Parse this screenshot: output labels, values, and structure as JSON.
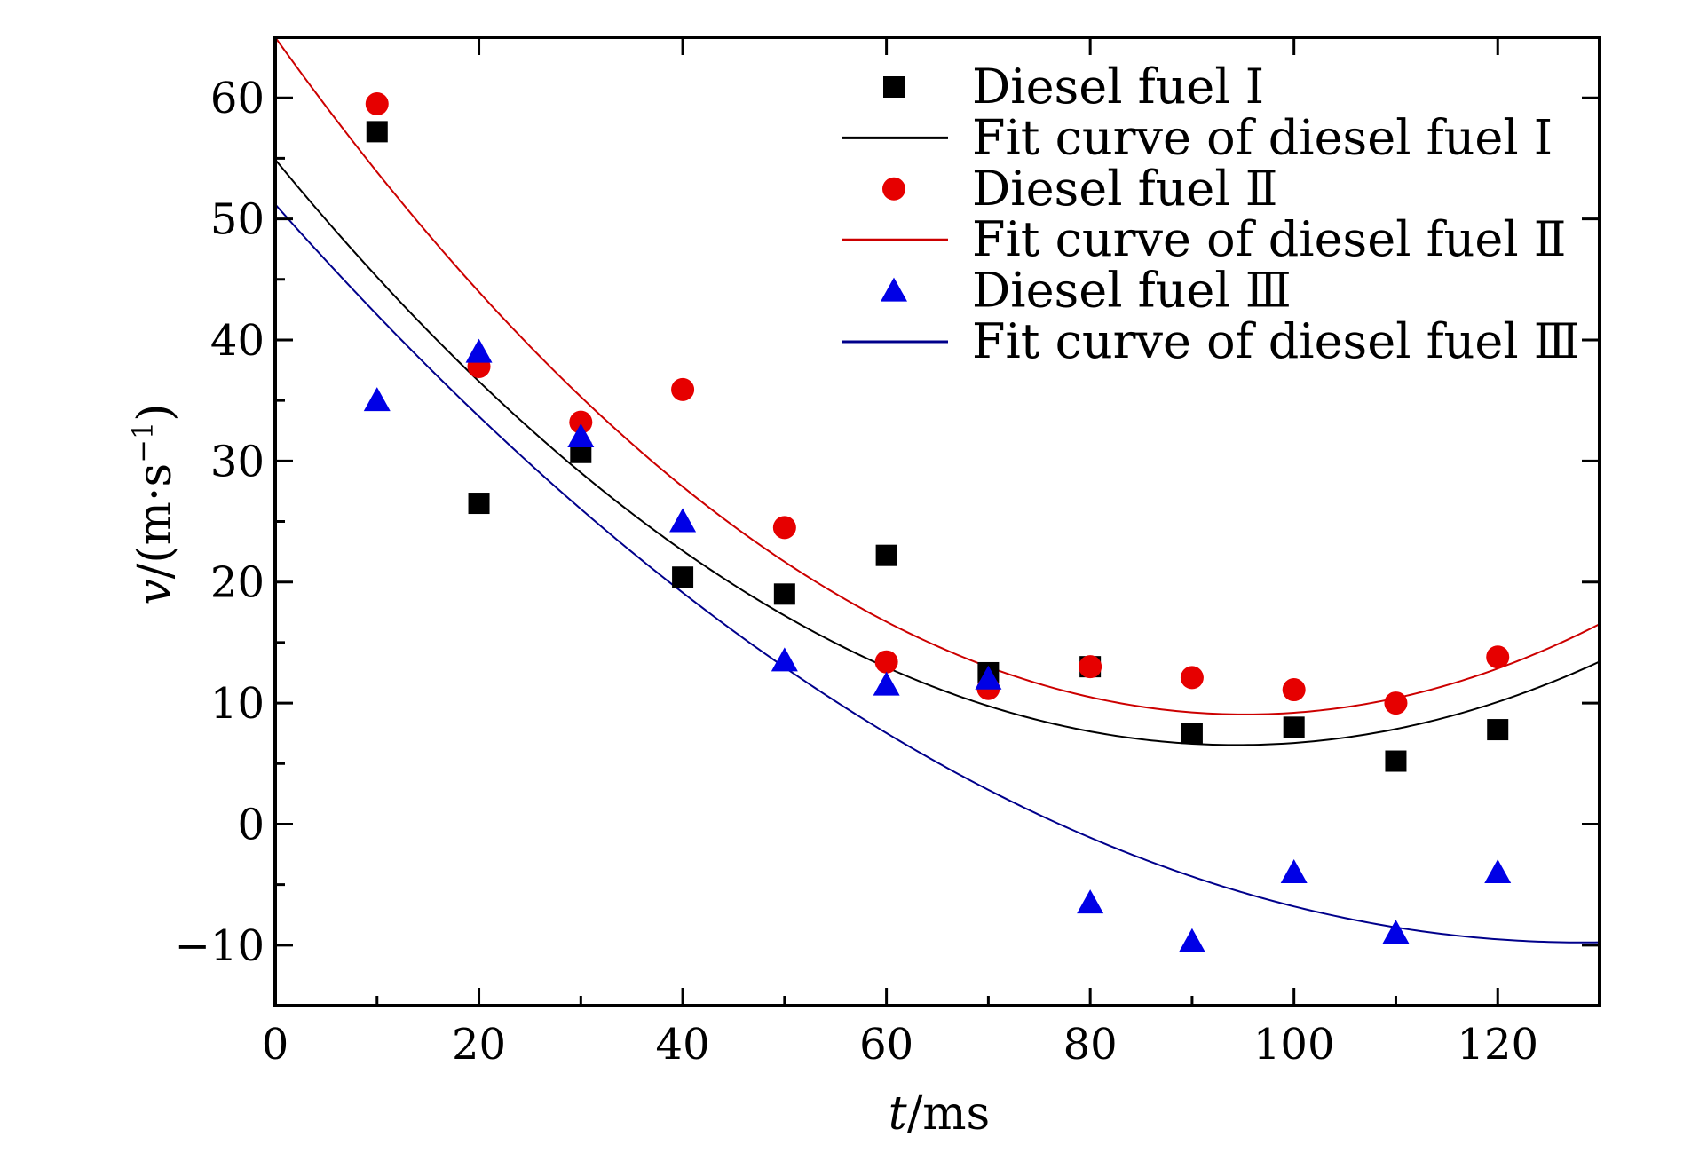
{
  "chart_data": {
    "type": "scatter",
    "xlabel": "t/ms",
    "xlabel_var": "t",
    "xlabel_unit": "/ms",
    "ylabel_var": "v",
    "ylabel_unit": "/(m·s",
    "ylabel_exp": "−1",
    "ylabel_close": ")",
    "xlim": [
      0,
      130
    ],
    "ylim": [
      -15,
      65
    ],
    "xticks": [
      0,
      20,
      40,
      60,
      80,
      100,
      120
    ],
    "yticks": [
      -10,
      0,
      10,
      20,
      30,
      40,
      50,
      60
    ],
    "ytick_labels": [
      "−10",
      "0",
      "10",
      "20",
      "30",
      "40",
      "50",
      "60"
    ],
    "grid": false,
    "legend_position": "top-right",
    "x": [
      10,
      20,
      30,
      40,
      50,
      60,
      70,
      80,
      90,
      100,
      110,
      120
    ],
    "series": [
      {
        "name": "Diesel fuel Ⅰ",
        "marker": "square",
        "color": "#000000",
        "values": [
          57.2,
          26.5,
          30.7,
          20.4,
          19.0,
          22.2,
          12.5,
          13.0,
          7.5,
          8.0,
          5.2,
          7.8
        ]
      },
      {
        "name": "Diesel fuel Ⅱ",
        "marker": "circle",
        "color": "#e60000",
        "values": [
          59.5,
          37.8,
          33.2,
          35.9,
          24.5,
          13.4,
          11.2,
          13.0,
          12.1,
          11.1,
          10.0,
          13.8
        ]
      },
      {
        "name": "Diesel fuel Ⅲ",
        "marker": "triangle",
        "color": "#0000e6",
        "values": [
          35.0,
          39.0,
          32.0,
          25.0,
          13.5,
          11.5,
          12.0,
          -6.5,
          -9.7,
          -4.0,
          -9.0,
          -4.0
        ]
      }
    ],
    "fit_curves": [
      {
        "name": "Fit curve of diesel fuel Ⅰ",
        "color": "#000000",
        "coefficients": [
          54.9,
          -1.025,
          0.00543
        ]
      },
      {
        "name": "Fit curve of diesel fuel Ⅱ",
        "color": "#cc0000",
        "coefficients": [
          65.0,
          -1.175,
          0.00617
        ]
      },
      {
        "name": "Fit curve of diesel fuel Ⅲ",
        "color": "#00008b",
        "coefficients": [
          51.2,
          -0.95,
          0.0037
        ]
      }
    ],
    "legend": [
      {
        "label": "Diesel fuel Ⅰ",
        "kind": "marker",
        "marker": "square",
        "color": "#000000"
      },
      {
        "label": "Fit curve of diesel fuel Ⅰ",
        "kind": "line",
        "color": "#000000"
      },
      {
        "label": "Diesel fuel Ⅱ",
        "kind": "marker",
        "marker": "circle",
        "color": "#e60000"
      },
      {
        "label": "Fit curve of diesel fuel Ⅱ",
        "kind": "line",
        "color": "#cc0000"
      },
      {
        "label": "Diesel fuel Ⅲ",
        "kind": "marker",
        "marker": "triangle",
        "color": "#0000e6"
      },
      {
        "label": "Fit curve of diesel fuel Ⅲ",
        "kind": "line",
        "color": "#00008b"
      }
    ]
  }
}
